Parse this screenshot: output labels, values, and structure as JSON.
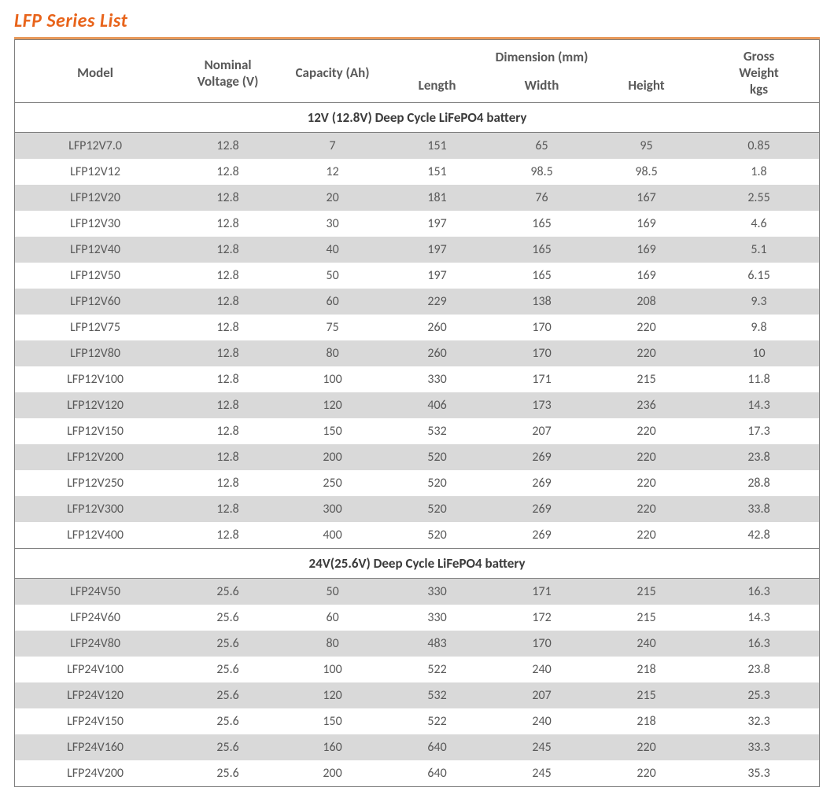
{
  "page": {
    "title": "LFP Series List",
    "title_color": "#e8641b",
    "underline_color": "#e89a5c"
  },
  "table": {
    "type": "table",
    "background_color": "#ffffff",
    "row_stripe_color": "#d9d9d9",
    "border_color": "#7f7f7f",
    "text_color": "#595959",
    "header_fontsize": 17,
    "cell_fontsize": 16,
    "columns": {
      "model": {
        "label": "Model"
      },
      "voltage": {
        "label_line1": "Nominal",
        "label_line2": "Voltage (V)"
      },
      "capacity": {
        "label": "Capacity (Ah)"
      },
      "dimension_group": {
        "label": "Dimension (mm)"
      },
      "length": {
        "label": "Length"
      },
      "width": {
        "label": "Width"
      },
      "height": {
        "label": "Height"
      },
      "weight": {
        "label_line1": "Gross",
        "label_line2": "Weight",
        "label_line3": "kgs"
      }
    },
    "sections": [
      {
        "title": "12V (12.8V) Deep Cycle LiFePO4 battery",
        "rows": [
          {
            "model": "LFP12V7.0",
            "voltage": "12.8",
            "capacity": "7",
            "length": "151",
            "width": "65",
            "height": "95",
            "weight": "0.85"
          },
          {
            "model": "LFP12V12",
            "voltage": "12.8",
            "capacity": "12",
            "length": "151",
            "width": "98.5",
            "height": "98.5",
            "weight": "1.8"
          },
          {
            "model": "LFP12V20",
            "voltage": "12.8",
            "capacity": "20",
            "length": "181",
            "width": "76",
            "height": "167",
            "weight": "2.55"
          },
          {
            "model": "LFP12V30",
            "voltage": "12.8",
            "capacity": "30",
            "length": "197",
            "width": "165",
            "height": "169",
            "weight": "4.6"
          },
          {
            "model": "LFP12V40",
            "voltage": "12.8",
            "capacity": "40",
            "length": "197",
            "width": "165",
            "height": "169",
            "weight": "5.1"
          },
          {
            "model": "LFP12V50",
            "voltage": "12.8",
            "capacity": "50",
            "length": "197",
            "width": "165",
            "height": "169",
            "weight": "6.15"
          },
          {
            "model": "LFP12V60",
            "voltage": "12.8",
            "capacity": "60",
            "length": "229",
            "width": "138",
            "height": "208",
            "weight": "9.3"
          },
          {
            "model": "LFP12V75",
            "voltage": "12.8",
            "capacity": "75",
            "length": "260",
            "width": "170",
            "height": "220",
            "weight": "9.8"
          },
          {
            "model": "LFP12V80",
            "voltage": "12.8",
            "capacity": "80",
            "length": "260",
            "width": "170",
            "height": "220",
            "weight": "10"
          },
          {
            "model": "LFP12V100",
            "voltage": "12.8",
            "capacity": "100",
            "length": "330",
            "width": "171",
            "height": "215",
            "weight": "11.8"
          },
          {
            "model": "LFP12V120",
            "voltage": "12.8",
            "capacity": "120",
            "length": "406",
            "width": "173",
            "height": "236",
            "weight": "14.3"
          },
          {
            "model": "LFP12V150",
            "voltage": "12.8",
            "capacity": "150",
            "length": "532",
            "width": "207",
            "height": "220",
            "weight": "17.3"
          },
          {
            "model": "LFP12V200",
            "voltage": "12.8",
            "capacity": "200",
            "length": "520",
            "width": "269",
            "height": "220",
            "weight": "23.8"
          },
          {
            "model": "LFP12V250",
            "voltage": "12.8",
            "capacity": "250",
            "length": "520",
            "width": "269",
            "height": "220",
            "weight": "28.8"
          },
          {
            "model": "LFP12V300",
            "voltage": "12.8",
            "capacity": "300",
            "length": "520",
            "width": "269",
            "height": "220",
            "weight": "33.8"
          },
          {
            "model": "LFP12V400",
            "voltage": "12.8",
            "capacity": "400",
            "length": "520",
            "width": "269",
            "height": "220",
            "weight": "42.8"
          }
        ]
      },
      {
        "title": "24V(25.6V) Deep Cycle LiFePO4 battery",
        "rows": [
          {
            "model": "LFP24V50",
            "voltage": "25.6",
            "capacity": "50",
            "length": "330",
            "width": "171",
            "height": "215",
            "weight": "16.3"
          },
          {
            "model": "LFP24V60",
            "voltage": "25.6",
            "capacity": "60",
            "length": "330",
            "width": "172",
            "height": "215",
            "weight": "14.3"
          },
          {
            "model": "LFP24V80",
            "voltage": "25.6",
            "capacity": "80",
            "length": "483",
            "width": "170",
            "height": "240",
            "weight": "16.3"
          },
          {
            "model": "LFP24V100",
            "voltage": "25.6",
            "capacity": "100",
            "length": "522",
            "width": "240",
            "height": "218",
            "weight": "23.8"
          },
          {
            "model": "LFP24V120",
            "voltage": "25.6",
            "capacity": "120",
            "length": "532",
            "width": "207",
            "height": "215",
            "weight": "25.3"
          },
          {
            "model": "LFP24V150",
            "voltage": "25.6",
            "capacity": "150",
            "length": "522",
            "width": "240",
            "height": "218",
            "weight": "32.3"
          },
          {
            "model": "LFP24V160",
            "voltage": "25.6",
            "capacity": "160",
            "length": "640",
            "width": "245",
            "height": "220",
            "weight": "33.3"
          },
          {
            "model": "LFP24V200",
            "voltage": "25.6",
            "capacity": "200",
            "length": "640",
            "width": "245",
            "height": "220",
            "weight": "35.3"
          }
        ]
      }
    ]
  }
}
